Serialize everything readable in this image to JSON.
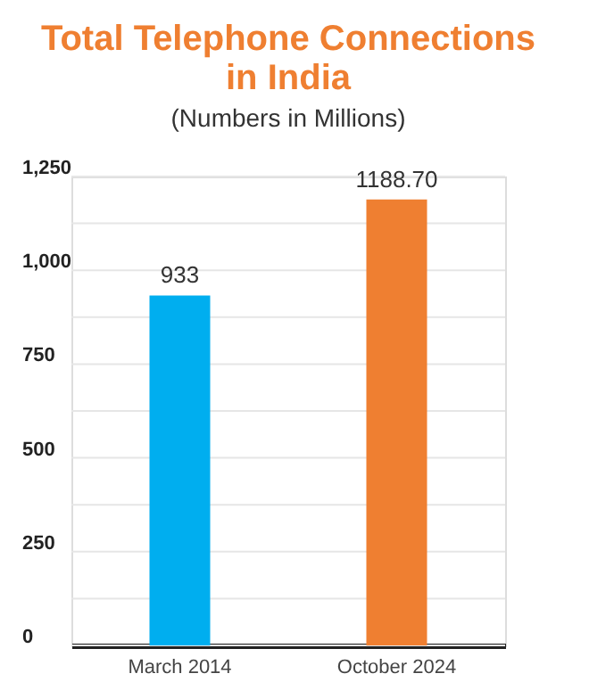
{
  "chart_data": {
    "type": "bar",
    "title": "Total Telephone Connections\nin India",
    "subtitle": "(Numbers in Millions)",
    "categories": [
      "March 2014",
      "October 2024"
    ],
    "values": [
      933,
      1188.7
    ],
    "colors": [
      "#00aeef",
      "#ef7f31"
    ],
    "value_labels": [
      "933",
      "1188.70"
    ],
    "ylim": [
      0,
      1250
    ],
    "yticks": [
      0,
      {
        "value": 125,
        "label": null
      },
      250,
      {
        "value": 375,
        "label": null
      },
      500,
      {
        "value": 625,
        "label": null
      },
      750,
      {
        "value": 875,
        "label": null
      },
      {
        "value": 1000,
        "label": "1,000"
      },
      {
        "value": 1125,
        "label": null
      },
      {
        "value": 1250,
        "label": "1,250"
      }
    ],
    "grid": "y"
  }
}
